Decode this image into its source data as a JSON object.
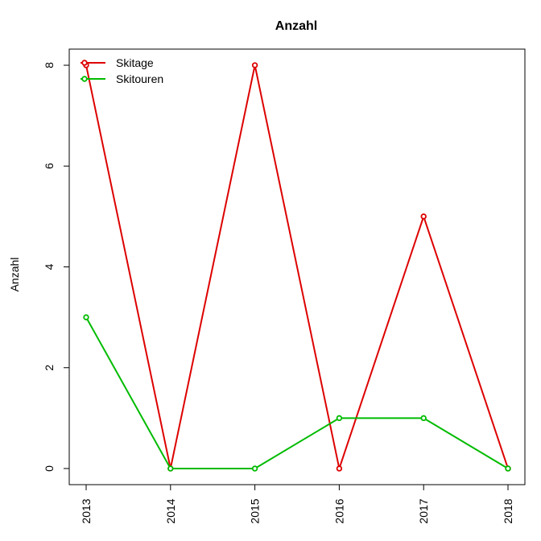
{
  "chart_data": {
    "type": "line",
    "title": "Anzahl",
    "xlabel": "",
    "ylabel": "Anzahl",
    "categories": [
      "2013",
      "2014",
      "2015",
      "2016",
      "2017",
      "2018"
    ],
    "y_ticks": [
      "0",
      "2",
      "4",
      "6",
      "8"
    ],
    "ylim": [
      -0.32,
      8.32
    ],
    "grid": false,
    "legend_position": "top-left",
    "series": [
      {
        "name": "Skitage",
        "color": "#DD0000",
        "marker": "open-circle",
        "values": [
          8,
          0,
          8,
          0,
          5,
          0
        ]
      },
      {
        "name": "Skitouren",
        "color": "#00BB00",
        "marker": "open-circle",
        "values": [
          3,
          0,
          0,
          1,
          1,
          0
        ]
      }
    ]
  }
}
